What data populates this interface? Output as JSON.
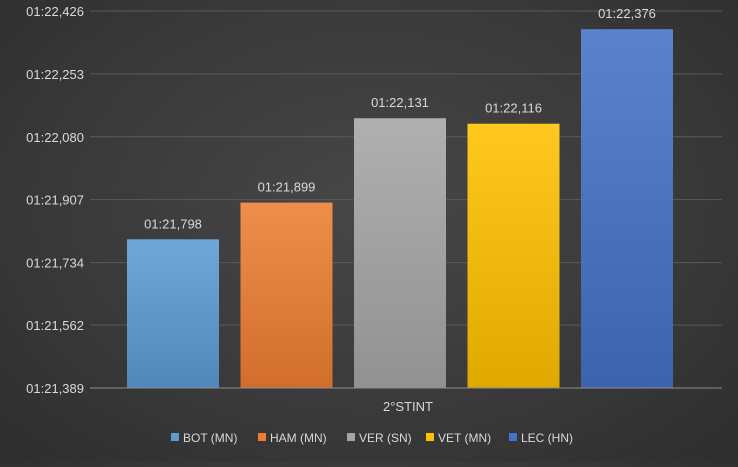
{
  "chart_data": {
    "type": "bar",
    "title": "",
    "xlabel": "",
    "ylabel": "",
    "categories": [
      "2°STINT"
    ],
    "series": [
      {
        "name": "BOT (MN)",
        "value_seconds": 81.798,
        "label": "01:21,798",
        "color": "#5b9bd5"
      },
      {
        "name": "HAM (MN)",
        "value_seconds": 81.899,
        "label": "01:21,899",
        "color": "#ed7d31"
      },
      {
        "name": "VER (SN)",
        "value_seconds": 82.131,
        "label": "01:22,131",
        "color": "#a5a5a5"
      },
      {
        "name": "VET (MN)",
        "value_seconds": 82.116,
        "label": "01:22,116",
        "color": "#ffc000"
      },
      {
        "name": "LEC (HN)",
        "value_seconds": 82.376,
        "label": "01:22,376",
        "color": "#4472c4"
      }
    ],
    "y_ticks": [
      {
        "value_seconds": 81.389,
        "label": "01:21,389"
      },
      {
        "value_seconds": 81.562,
        "label": "01:21,562"
      },
      {
        "value_seconds": 81.734,
        "label": "01:21,734"
      },
      {
        "value_seconds": 81.907,
        "label": "01:21,907"
      },
      {
        "value_seconds": 82.08,
        "label": "01:22,080"
      },
      {
        "value_seconds": 82.253,
        "label": "01:22,253"
      },
      {
        "value_seconds": 82.426,
        "label": "01:22,426"
      }
    ],
    "ylim_seconds": [
      81.389,
      82.426
    ],
    "grid": true,
    "legend_position": "bottom"
  }
}
